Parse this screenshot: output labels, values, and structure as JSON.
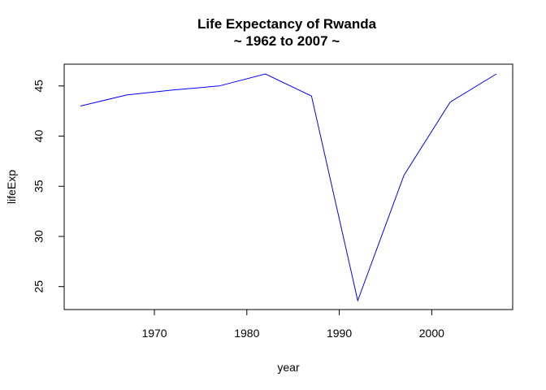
{
  "chart_data": {
    "type": "line",
    "title": "Life Expectancy of Rwanda",
    "subtitle": "~ 1962 to 2007 ~",
    "xlabel": "year",
    "ylabel": "lifeExp",
    "xlim": [
      1962,
      2007
    ],
    "ylim": [
      23.6,
      46.2
    ],
    "xticks": [
      1970,
      1980,
      1990,
      2000
    ],
    "yticks": [
      25,
      30,
      35,
      40,
      45
    ],
    "grid": false,
    "legend": "none",
    "series": [
      {
        "color": "#0000ff",
        "x": [
          1962,
          1967,
          1972,
          1977,
          1982,
          1987,
          1992,
          1997,
          2002,
          2007
        ],
        "y": [
          43.0,
          44.1,
          44.6,
          45.0,
          46.2,
          44.0,
          23.6,
          36.1,
          43.4,
          46.2
        ]
      }
    ]
  }
}
